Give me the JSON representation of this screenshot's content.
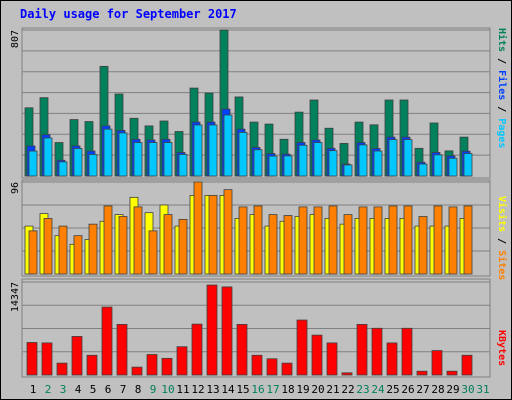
{
  "chart_data": [
    {
      "type": "bar",
      "title": "Daily usage for September 2017",
      "ymax_label": "807",
      "ylabel_parts": [
        "Pages",
        "Files",
        "Hits"
      ],
      "ylabel_separators": [
        " / ",
        " / "
      ],
      "categories": [
        "1",
        "2",
        "3",
        "4",
        "5",
        "6",
        "7",
        "8",
        "9",
        "10",
        "11",
        "12",
        "13",
        "14",
        "15",
        "16",
        "17",
        "18",
        "19",
        "20",
        "21",
        "22",
        "23",
        "24",
        "25",
        "26",
        "27",
        "28",
        "29",
        "30",
        "31"
      ],
      "series": [
        {
          "name": "Hits",
          "values": [
            377,
            433,
            185,
            312,
            301,
            606,
            453,
            319,
            277,
            304,
            246,
            486,
            458,
            807,
            437,
            298,
            287,
            203,
            353,
            420,
            264,
            180,
            298,
            283,
            420,
            420,
            153,
            293,
            139,
            215,
            0
          ]
        },
        {
          "name": "Files",
          "values": [
            166,
            228,
            87,
            166,
            138,
            277,
            252,
            203,
            199,
            203,
            130,
            298,
            298,
            370,
            259,
            158,
            124,
            121,
            185,
            199,
            153,
            66,
            185,
            152,
            215,
            215,
            76,
            130,
            111,
            137,
            0
          ]
        },
        {
          "name": "Pages",
          "values": [
            138,
            210,
            78,
            152,
            119,
            259,
            238,
            185,
            185,
            185,
            119,
            282,
            282,
            337,
            241,
            145,
            110,
            111,
            170,
            185,
            140,
            61,
            172,
            138,
            201,
            201,
            66,
            117,
            98,
            124,
            0
          ]
        }
      ],
      "colors": {
        "Hits": "#00805c",
        "Files": "#0040ff",
        "Pages": "#00c8ff"
      },
      "ylim": [
        0,
        807
      ]
    },
    {
      "type": "bar",
      "ymax_label": "96",
      "ylabel_parts": [
        "Sites",
        "Visits"
      ],
      "ylabel_separators": [
        " / "
      ],
      "categories": [
        "1",
        "2",
        "3",
        "4",
        "5",
        "6",
        "7",
        "8",
        "9",
        "10",
        "11",
        "12",
        "13",
        "14",
        "15",
        "16",
        "17",
        "18",
        "19",
        "20",
        "21",
        "22",
        "23",
        "24",
        "25",
        "26",
        "27",
        "28",
        "29",
        "30",
        "31"
      ],
      "series": [
        {
          "name": "Visits",
          "values": [
            50,
            63,
            40,
            31,
            36,
            55,
            62,
            80,
            64,
            72,
            50,
            82,
            82,
            82,
            58,
            62,
            50,
            55,
            60,
            62,
            58,
            52,
            58,
            58,
            58,
            58,
            50,
            50,
            50,
            58,
            0
          ]
        },
        {
          "name": "Sites",
          "values": [
            45,
            58,
            50,
            40,
            52,
            71,
            60,
            70,
            45,
            62,
            57,
            96,
            82,
            88,
            70,
            71,
            62,
            61,
            70,
            70,
            71,
            62,
            70,
            70,
            71,
            71,
            60,
            71,
            70,
            71,
            0
          ]
        }
      ],
      "colors": {
        "Visits": "#ffff00",
        "Sites": "#ff8000"
      },
      "ylim": [
        0,
        96
      ]
    },
    {
      "type": "bar",
      "ymax_label": "14347",
      "ylabel_parts": [
        "KBytes"
      ],
      "ylabel_separators": [],
      "categories": [
        "1",
        "2",
        "3",
        "4",
        "5",
        "6",
        "7",
        "8",
        "9",
        "10",
        "11",
        "12",
        "13",
        "14",
        "15",
        "16",
        "17",
        "18",
        "19",
        "20",
        "21",
        "22",
        "23",
        "24",
        "25",
        "26",
        "27",
        "28",
        "29",
        "30",
        "31"
      ],
      "series": [
        {
          "name": "KBytes",
          "values": [
            5021,
            4951,
            1831,
            5948,
            3044,
            10480,
            7806,
            1216,
            3163,
            2566,
            4362,
            7849,
            13879,
            13589,
            7806,
            3044,
            2503,
            1831,
            8479,
            6152,
            4951,
            342,
            7806,
            7208,
            4951,
            7208,
            586,
            3769,
            586,
            3044,
            0
          ]
        }
      ],
      "colors": {
        "KBytes": "#ff0000"
      },
      "ylim": [
        0,
        14347
      ]
    }
  ],
  "x_axis": {
    "labels": [
      "1",
      "2",
      "3",
      "4",
      "5",
      "6",
      "7",
      "8",
      "9",
      "10",
      "11",
      "12",
      "13",
      "14",
      "15",
      "16",
      "17",
      "18",
      "19",
      "20",
      "21",
      "22",
      "23",
      "24",
      "25",
      "26",
      "27",
      "28",
      "29",
      "30",
      "31"
    ],
    "weekend_labels": [
      "2",
      "3",
      "9",
      "10",
      "16",
      "17",
      "23",
      "24",
      "30",
      "31"
    ],
    "weekday_color": "#000000",
    "weekend_color": "#00805c"
  },
  "colors": {
    "background": "#c0c0c0",
    "title": "#0000ff",
    "gridline": "#808080"
  }
}
